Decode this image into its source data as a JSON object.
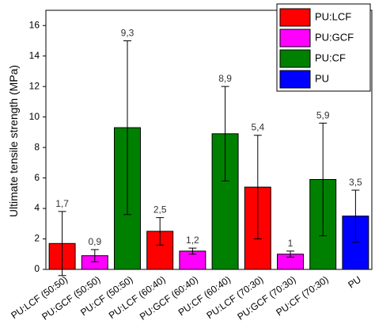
{
  "chart_data": {
    "type": "bar",
    "y_label": "Ultimate tensile strength (MPa)",
    "categories": [
      "PU:LCF (50:50)",
      "PU:GCF (50:50)",
      "PU:CF (50:50)",
      "PU:LCF (60:40)",
      "PU:GCF (60:40)",
      "PU:CF (60:40)",
      "PU:LCF (70:30)",
      "PU:GCF (70:30)",
      "PU:CF (70:30)",
      "PU"
    ],
    "series": [
      {
        "name": "PU:LCF",
        "color": "#ff0000",
        "values": [
          1.7,
          null,
          null,
          2.5,
          null,
          null,
          5.4,
          null,
          null,
          null
        ],
        "errors": [
          2.1,
          null,
          null,
          0.9,
          null,
          null,
          3.4,
          null,
          null,
          null
        ],
        "value_labels": [
          "1,7",
          null,
          null,
          "2,5",
          null,
          null,
          "5,4",
          null,
          null,
          null
        ]
      },
      {
        "name": "PU:GCF",
        "color": "#ff00ff",
        "values": [
          null,
          0.9,
          null,
          null,
          1.2,
          null,
          null,
          1,
          null,
          null
        ],
        "errors": [
          null,
          0.4,
          null,
          null,
          0.2,
          null,
          null,
          0.2,
          null,
          null
        ],
        "value_labels": [
          null,
          "0,9",
          null,
          null,
          "1,2",
          null,
          null,
          "1",
          null,
          null
        ]
      },
      {
        "name": "PU:CF",
        "color": "#008000",
        "values": [
          null,
          null,
          9.3,
          null,
          null,
          8.9,
          null,
          null,
          5.9,
          null
        ],
        "errors": [
          null,
          null,
          5.7,
          null,
          null,
          3.1,
          null,
          null,
          3.7,
          null
        ],
        "value_labels": [
          null,
          null,
          "9,3",
          null,
          null,
          "8,9",
          null,
          null,
          "5,9",
          null
        ]
      },
      {
        "name": "PU",
        "color": "#0000ff",
        "values": [
          null,
          null,
          null,
          null,
          null,
          null,
          null,
          null,
          null,
          3.5
        ],
        "errors": [
          null,
          null,
          null,
          null,
          null,
          null,
          null,
          null,
          null,
          1.7
        ],
        "value_labels": [
          null,
          null,
          null,
          null,
          null,
          null,
          null,
          null,
          null,
          "3,5"
        ]
      }
    ],
    "ylim": [
      0,
      17
    ],
    "yticks": [
      0,
      2,
      4,
      6,
      8,
      10,
      12,
      14,
      16
    ],
    "legend": "top-right"
  }
}
